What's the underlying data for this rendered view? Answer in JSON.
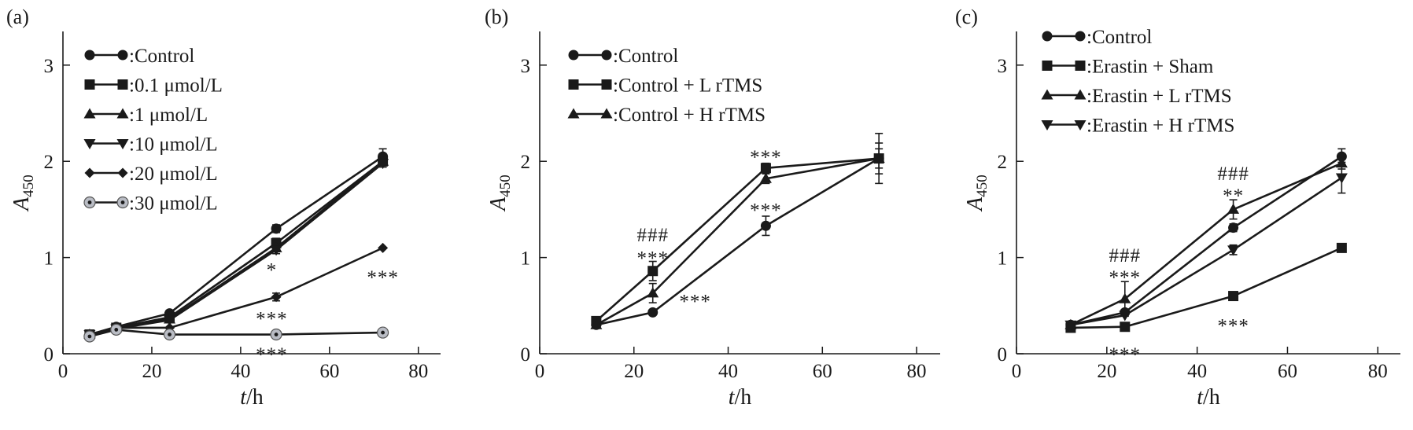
{
  "chart_data": [
    {
      "type": "line",
      "panel_label": "(a)",
      "xlabel_italic": "t",
      "xlabel_rest": "/h",
      "ylabel_main": "A",
      "ylabel_sub": "450",
      "xlim": [
        0,
        85
      ],
      "ylim": [
        0,
        3.35
      ],
      "xticks": [
        0,
        20,
        40,
        60,
        80
      ],
      "yticks": [
        0,
        1,
        2,
        3
      ],
      "grid": false,
      "legend_position": "top-left",
      "series": [
        {
          "name": ":Control",
          "marker": "circle",
          "x": [
            6,
            12,
            24,
            48,
            72
          ],
          "y": [
            0.2,
            0.28,
            0.42,
            1.3,
            2.05
          ],
          "err": [
            0,
            0,
            0.02,
            0.04,
            0.08
          ]
        },
        {
          "name": ":0.1 μmol/L",
          "marker": "square",
          "x": [
            6,
            12,
            24,
            48,
            72
          ],
          "y": [
            0.2,
            0.27,
            0.38,
            1.15,
            2.0
          ],
          "err": [
            0,
            0,
            0,
            0.05,
            0.04
          ]
        },
        {
          "name": ":1 μmol/L",
          "marker": "triangle-up",
          "x": [
            6,
            12,
            24,
            48,
            72
          ],
          "y": [
            0.2,
            0.27,
            0.36,
            1.1,
            2.0
          ],
          "err": [
            0,
            0,
            0,
            0.04,
            0.04
          ]
        },
        {
          "name": ":10 μmol/L",
          "marker": "triangle-down",
          "x": [
            6,
            12,
            24,
            48,
            72
          ],
          "y": [
            0.2,
            0.26,
            0.35,
            1.08,
            1.98
          ],
          "err": [
            0,
            0,
            0,
            0.04,
            0.04
          ]
        },
        {
          "name": ":20 μmol/L",
          "marker": "diamond",
          "x": [
            6,
            12,
            24,
            48,
            72
          ],
          "y": [
            0.2,
            0.27,
            0.27,
            0.59,
            1.1
          ],
          "err": [
            0,
            0,
            0,
            0.04,
            0
          ]
        },
        {
          "name": ":30 μmol/L",
          "marker": "circle-gray",
          "x": [
            6,
            12,
            24,
            48,
            72
          ],
          "y": [
            0.18,
            0.25,
            0.2,
            0.2,
            0.22
          ],
          "err": [
            0,
            0,
            0,
            0,
            0
          ]
        }
      ],
      "annotations": [
        {
          "text": "*",
          "x": 47,
          "y": 0.88
        },
        {
          "text": "***",
          "x": 47,
          "y": 0.37
        },
        {
          "text": "***",
          "x": 47,
          "y": 0.0
        },
        {
          "text": "***",
          "x": 72,
          "y": 0.8
        }
      ]
    },
    {
      "type": "line",
      "panel_label": "(b)",
      "xlabel_italic": "t",
      "xlabel_rest": "/h",
      "ylabel_main": "A",
      "ylabel_sub": "450",
      "xlim": [
        0,
        85
      ],
      "ylim": [
        0,
        3.35
      ],
      "xticks": [
        0,
        20,
        40,
        60,
        80
      ],
      "yticks": [
        0,
        1,
        2,
        3
      ],
      "grid": false,
      "legend_position": "top-left",
      "series": [
        {
          "name": ":Control",
          "marker": "circle",
          "x": [
            12,
            24,
            48,
            72
          ],
          "y": [
            0.3,
            0.43,
            1.33,
            2.03
          ],
          "err": [
            0.02,
            0,
            0.1,
            0.26
          ]
        },
        {
          "name": ":Control + L rTMS",
          "marker": "square",
          "x": [
            12,
            24,
            48,
            72
          ],
          "y": [
            0.34,
            0.86,
            1.93,
            2.03
          ],
          "err": [
            0.02,
            0.1,
            0.05,
            0.16
          ]
        },
        {
          "name": ":Control + H rTMS",
          "marker": "triangle-up",
          "x": [
            12,
            24,
            48,
            72
          ],
          "y": [
            0.3,
            0.63,
            1.82,
            2.03
          ],
          "err": [
            0.02,
            0.1,
            0.05,
            0.1
          ]
        }
      ],
      "annotations": [
        {
          "text": "###",
          "x": 24,
          "y": 1.24
        },
        {
          "text": "***",
          "x": 24,
          "y": 1.0
        },
        {
          "text": "***",
          "x": 33,
          "y": 0.55
        },
        {
          "text": "***",
          "x": 48,
          "y": 2.05
        },
        {
          "text": "***",
          "x": 48,
          "y": 1.5
        }
      ]
    },
    {
      "type": "line",
      "panel_label": "(c)",
      "xlabel_italic": "t",
      "xlabel_rest": "/h",
      "ylabel_main": "A",
      "ylabel_sub": "450",
      "xlim": [
        0,
        85
      ],
      "ylim": [
        0,
        3.35
      ],
      "xticks": [
        0,
        20,
        40,
        60,
        80
      ],
      "yticks": [
        0,
        1,
        2,
        3
      ],
      "grid": false,
      "legend_position": "top-left",
      "series": [
        {
          "name": ":Control",
          "marker": "circle",
          "x": [
            12,
            24,
            48,
            72
          ],
          "y": [
            0.3,
            0.43,
            1.31,
            2.05
          ],
          "err": [
            0,
            0,
            0.04,
            0.08
          ]
        },
        {
          "name": ":Erastin + Sham",
          "marker": "square",
          "x": [
            12,
            24,
            48,
            72
          ],
          "y": [
            0.27,
            0.28,
            0.6,
            1.1
          ],
          "err": [
            0,
            0,
            0.02,
            0
          ]
        },
        {
          "name": ":Erastin + L rTMS",
          "marker": "triangle-up",
          "x": [
            12,
            24,
            48,
            72
          ],
          "y": [
            0.3,
            0.57,
            1.5,
            1.98
          ],
          "err": [
            0,
            0.18,
            0.1,
            0.06
          ]
        },
        {
          "name": ":Erastin + H rTMS",
          "marker": "triangle-down",
          "x": [
            12,
            24,
            48,
            72
          ],
          "y": [
            0.3,
            0.4,
            1.08,
            1.83
          ],
          "err": [
            0,
            0,
            0.05,
            0.16
          ]
        }
      ],
      "annotations": [
        {
          "text": "###",
          "x": 24,
          "y": 1.03
        },
        {
          "text": "***",
          "x": 24,
          "y": 0.8
        },
        {
          "text": "***",
          "x": 24,
          "y": 0.0
        },
        {
          "text": "###",
          "x": 48,
          "y": 1.88
        },
        {
          "text": "**",
          "x": 48,
          "y": 1.65
        },
        {
          "text": "***",
          "x": 48,
          "y": 0.3
        }
      ]
    }
  ]
}
